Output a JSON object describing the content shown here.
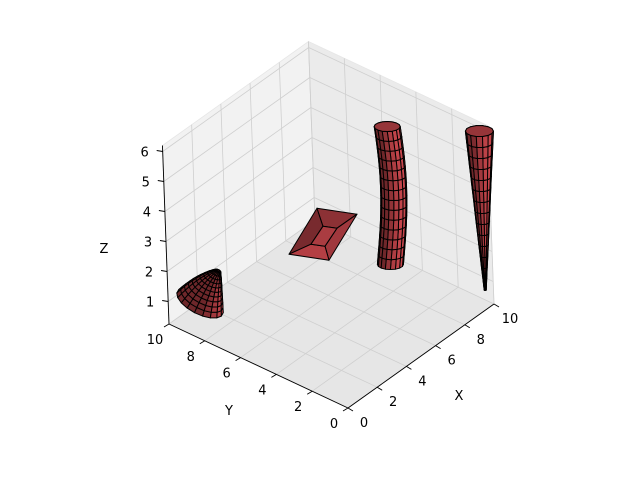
{
  "chart_data": {
    "type": "surface3d",
    "title": "",
    "xlabel": "X",
    "ylabel": "Y",
    "zlabel": "Z",
    "xlim": [
      0,
      10
    ],
    "ylim": [
      0,
      10
    ],
    "zlim": [
      0,
      6
    ],
    "xticks": [
      "0",
      "2",
      "4",
      "6",
      "8",
      "10"
    ],
    "yticks": [
      "0",
      "2",
      "4",
      "6",
      "8",
      "10"
    ],
    "zticks": [
      "1",
      "2",
      "3",
      "4",
      "5",
      "6"
    ],
    "grid": true,
    "face_color": "#c8464c",
    "edge_color": "#000000",
    "objects": [
      {
        "name": "cone-like",
        "kind": "cone",
        "center": [
          1.3,
          9.3
        ],
        "z_range": [
          0.7,
          2.1
        ]
      },
      {
        "name": "hollow-square-frame",
        "kind": "frame",
        "center": [
          2.3,
          2.9
        ],
        "z": 4.5
      },
      {
        "name": "cylinder",
        "kind": "cylinder",
        "center": [
          8.7,
          4.7
        ],
        "z_range": [
          0.7,
          5.3
        ]
      },
      {
        "name": "tapered-spike",
        "kind": "spike",
        "center": [
          9.8,
          0.3
        ],
        "z_range": [
          0.7,
          6.0
        ]
      }
    ]
  }
}
